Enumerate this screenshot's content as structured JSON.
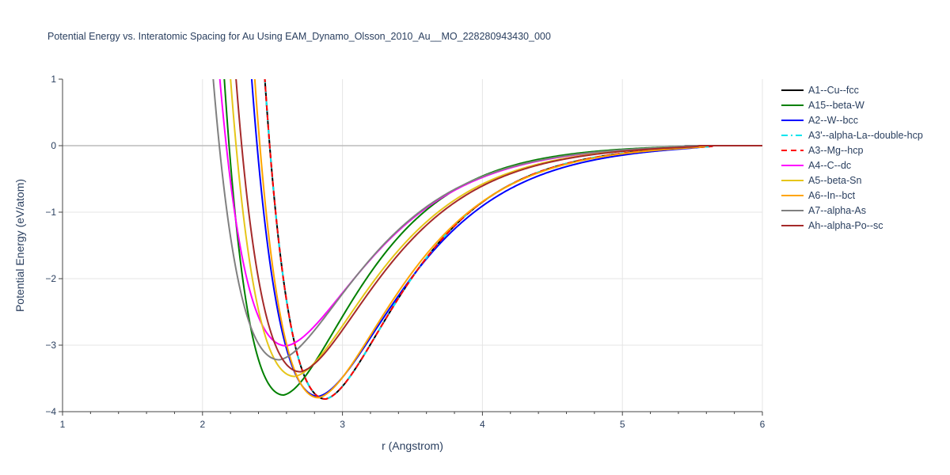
{
  "chart_data": {
    "type": "line",
    "title": "Potential Energy vs. Interatomic Spacing for Au Using EAM_Dynamo_Olsson_2010_Au__MO_228280943430_000",
    "xlabel": "r (Angstrom)",
    "ylabel": "Potential Energy (eV/atom)",
    "xlim": [
      1,
      6
    ],
    "ylim": [
      -4,
      1
    ],
    "x_ticks": [
      "1",
      "2",
      "3",
      "4",
      "5",
      "6"
    ],
    "y_ticks": [
      "1",
      "0",
      "−1",
      "−2",
      "−3",
      "−4"
    ],
    "grid": true,
    "legend_position": "top-right",
    "series": [
      {
        "name": "A1--Cu--fcc",
        "color": "#000000",
        "dash": "solid",
        "r0": 2.88,
        "E0": -3.81,
        "x_cross": 2.48,
        "cutoff": 5.65
      },
      {
        "name": "A15--beta-W",
        "color": "#008000",
        "dash": "solid",
        "r0": 2.58,
        "E0": -3.75,
        "x_cross": 2.19,
        "cutoff": 5.5
      },
      {
        "name": "A2--W--bcc",
        "color": "#0000ff",
        "dash": "solid",
        "r0": 2.83,
        "E0": -3.77,
        "x_cross": 2.39,
        "cutoff": 5.6
      },
      {
        "name": "A3'--alpha-La--double-hcp",
        "color": "#00e5ee",
        "dash": "dashdot",
        "r0": 2.88,
        "E0": -3.81,
        "x_cross": 2.48,
        "cutoff": 5.65
      },
      {
        "name": "A3--Mg--hcp",
        "color": "#ff0000",
        "dash": "dash",
        "r0": 2.88,
        "E0": -3.81,
        "x_cross": 2.48,
        "cutoff": 5.65
      },
      {
        "name": "A4--C--dc",
        "color": "#ff00ff",
        "dash": "solid",
        "r0": 2.6,
        "E0": -3.01,
        "x_cross": 2.17,
        "cutoff": 5.55
      },
      {
        "name": "A5--beta-Sn",
        "color": "#e6c619",
        "dash": "solid",
        "r0": 2.66,
        "E0": -3.47,
        "x_cross": 2.24,
        "cutoff": 5.55
      },
      {
        "name": "A6--In--bct",
        "color": "#ffa500",
        "dash": "solid",
        "r0": 2.83,
        "E0": -3.79,
        "x_cross": 2.41,
        "cutoff": 5.6
      },
      {
        "name": "A7--alpha-As",
        "color": "#808080",
        "dash": "solid",
        "r0": 2.55,
        "E0": -3.22,
        "x_cross": 2.12,
        "cutoff": 5.45
      },
      {
        "name": "Ah--alpha-Po--sc",
        "color": "#a52a2a",
        "dash": "solid",
        "r0": 2.7,
        "E0": -3.4,
        "x_cross": 2.28,
        "cutoff": 5.55
      }
    ]
  }
}
